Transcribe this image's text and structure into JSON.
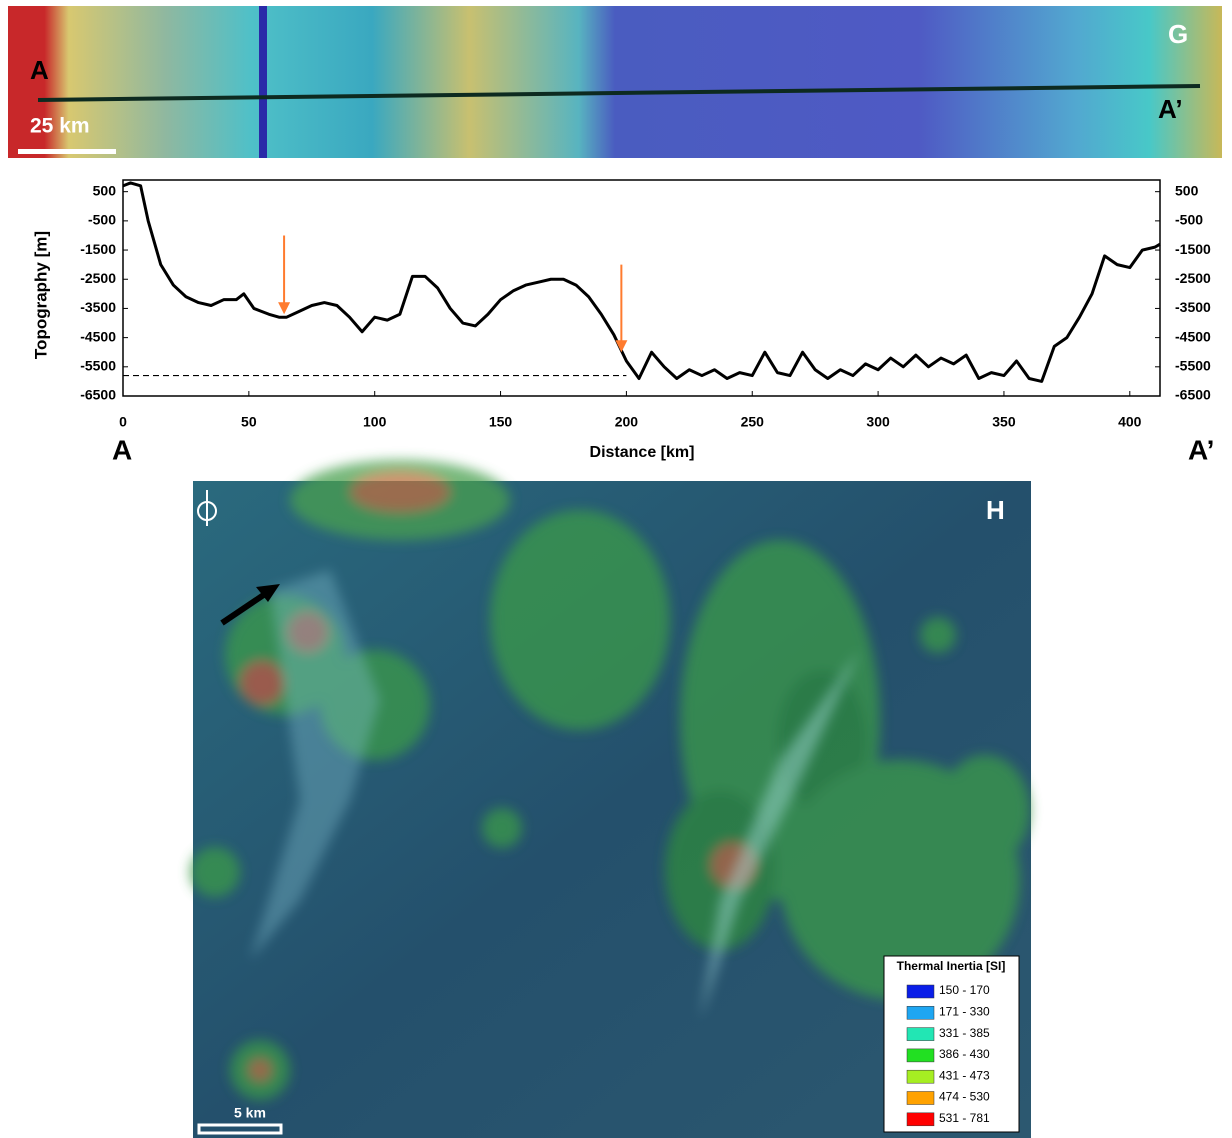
{
  "chart_data": {
    "type": "line",
    "ylabel": "Topography [m]",
    "xlabel": "Distance [km]",
    "start_label": "A",
    "end_label": "A’",
    "x": [
      0,
      3,
      7,
      10,
      15,
      20,
      25,
      30,
      35,
      40,
      45,
      48,
      52,
      55,
      58,
      62,
      65,
      70,
      75,
      80,
      85,
      90,
      95,
      100,
      105,
      110,
      115,
      120,
      125,
      130,
      135,
      140,
      145,
      150,
      155,
      160,
      165,
      170,
      175,
      180,
      185,
      190,
      195,
      200,
      205,
      210,
      215,
      220,
      225,
      230,
      235,
      240,
      245,
      250,
      255,
      260,
      265,
      270,
      275,
      280,
      285,
      290,
      295,
      300,
      305,
      310,
      315,
      320,
      325,
      330,
      335,
      340,
      345,
      350,
      355,
      360,
      365,
      370,
      375,
      380,
      385,
      390,
      395,
      400,
      405,
      410,
      412
    ],
    "values": [
      700,
      800,
      700,
      -500,
      -2000,
      -2700,
      -3100,
      -3300,
      -3400,
      -3200,
      -3200,
      -3000,
      -3500,
      -3600,
      -3700,
      -3800,
      -3800,
      -3600,
      -3400,
      -3300,
      -3400,
      -3800,
      -4300,
      -3800,
      -3900,
      -3700,
      -2400,
      -2400,
      -2800,
      -3500,
      -4000,
      -4100,
      -3700,
      -3200,
      -2900,
      -2700,
      -2600,
      -2500,
      -2500,
      -2700,
      -3100,
      -3700,
      -4400,
      -5300,
      -5900,
      -5000,
      -5500,
      -5900,
      -5600,
      -5800,
      -5600,
      -5900,
      -5700,
      -5800,
      -5000,
      -5700,
      -5800,
      -5000,
      -5600,
      -5900,
      -5600,
      -5800,
      -5400,
      -5600,
      -5200,
      -5500,
      -5100,
      -5500,
      -5200,
      -5400,
      -5100,
      -5900,
      -5700,
      -5800,
      -5300,
      -5900,
      -6000,
      -4800,
      -4500,
      -3800,
      -3000,
      -1700,
      -2000,
      -2100,
      -1500,
      -1400,
      -1300
    ],
    "color": "#000000",
    "reference_line": {
      "x": [
        0,
        200
      ],
      "y": [
        -5800,
        -5800
      ]
    },
    "arrows": [
      {
        "x": 64,
        "from": -1000,
        "to": -3700
      },
      {
        "x": 198,
        "from": -2000,
        "to": -5000
      }
    ],
    "arrow_color": "#ff7b2e",
    "xlim": [
      0,
      412
    ],
    "xticks": [
      0,
      50,
      100,
      150,
      200,
      250,
      300,
      350,
      400
    ],
    "ylim": [
      -6500,
      900
    ],
    "yticks": [
      500,
      -500,
      -1500,
      -2500,
      -3500,
      -4500,
      -5500,
      -6500
    ],
    "grid": false
  },
  "map_g": {
    "label": "G",
    "start": "A",
    "end": "A’",
    "scale": "25 km"
  },
  "map_h": {
    "label": "H",
    "scale": "5 km",
    "legend": {
      "title": "Thermal Inertia [SI]",
      "items": [
        {
          "label": "150 - 170",
          "color": "#0a1ee8"
        },
        {
          "label": "171 - 330",
          "color": "#1ea6f2"
        },
        {
          "label": "331 - 385",
          "color": "#22e6b4"
        },
        {
          "label": "386 - 430",
          "color": "#22e022"
        },
        {
          "label": "431 - 473",
          "color": "#a6ee22"
        },
        {
          "label": "474 - 530",
          "color": "#ffa200"
        },
        {
          "label": "531 - 781",
          "color": "#ff0000"
        }
      ]
    }
  }
}
